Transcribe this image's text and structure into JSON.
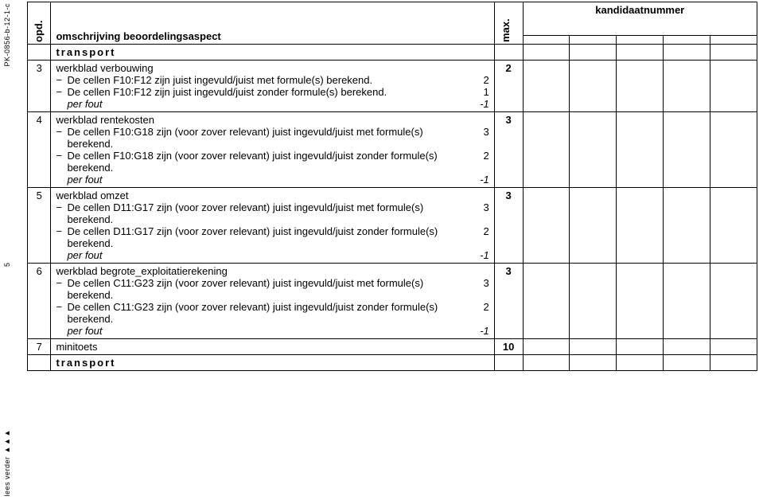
{
  "side": {
    "doc_code": "PK-0856-b-12-1-c",
    "page_indicator": "5",
    "footer": "lees verder ►►►"
  },
  "header": {
    "col_opd": "opd.",
    "col_desc": "omschrijving beoordelingsaspect",
    "col_max": "max.",
    "col_kand": "kandidaatnummer"
  },
  "section_transport": "transport",
  "rows": [
    {
      "num": "3",
      "title": "werkblad verbouwing",
      "max": "2",
      "lines": [
        {
          "text": "De cellen F10:F12 zijn juist ingevuld/juist met formule(s) berekend.",
          "val": "2"
        },
        {
          "text": "De cellen F10:F12 zijn juist ingevuld/juist zonder formule(s) berekend.",
          "val": "1"
        }
      ],
      "per_fout_label": "per fout",
      "per_fout_val": "-1"
    },
    {
      "num": "4",
      "title": "werkblad rentekosten",
      "max": "3",
      "lines": [
        {
          "text": "De cellen F10:G18 zijn (voor zover relevant) juist ingevuld/juist met formule(s) berekend.",
          "val": "3"
        },
        {
          "text": "De cellen F10:G18 zijn (voor zover relevant) juist ingevuld/juist zonder formule(s) berekend.",
          "val": "2"
        }
      ],
      "per_fout_label": "per fout",
      "per_fout_val": "-1"
    },
    {
      "num": "5",
      "title": "werkblad omzet",
      "max": "3",
      "lines": [
        {
          "text": "De cellen D11:G17 zijn (voor zover relevant) juist ingevuld/juist met formule(s) berekend.",
          "val": "3"
        },
        {
          "text": "De cellen D11:G17 zijn (voor zover relevant) juist ingevuld/juist zonder formule(s) berekend.",
          "val": "2"
        }
      ],
      "per_fout_label": "per fout",
      "per_fout_val": "-1"
    },
    {
      "num": "6",
      "title": "werkblad begrote_exploitatierekening",
      "max": "3",
      "lines": [
        {
          "text": "De cellen C11:G23 zijn (voor zover relevant) juist ingevuld/juist met formule(s) berekend.",
          "val": "3"
        },
        {
          "text": "De cellen C11:G23 zijn (voor zover relevant) juist ingevuld/juist zonder formule(s) berekend.",
          "val": "2"
        }
      ],
      "per_fout_label": "per fout",
      "per_fout_val": "-1"
    },
    {
      "num": "7",
      "title": "minitoets",
      "max": "10",
      "lines": [],
      "per_fout_label": null,
      "per_fout_val": null
    }
  ],
  "section_transport_bottom": "transport"
}
